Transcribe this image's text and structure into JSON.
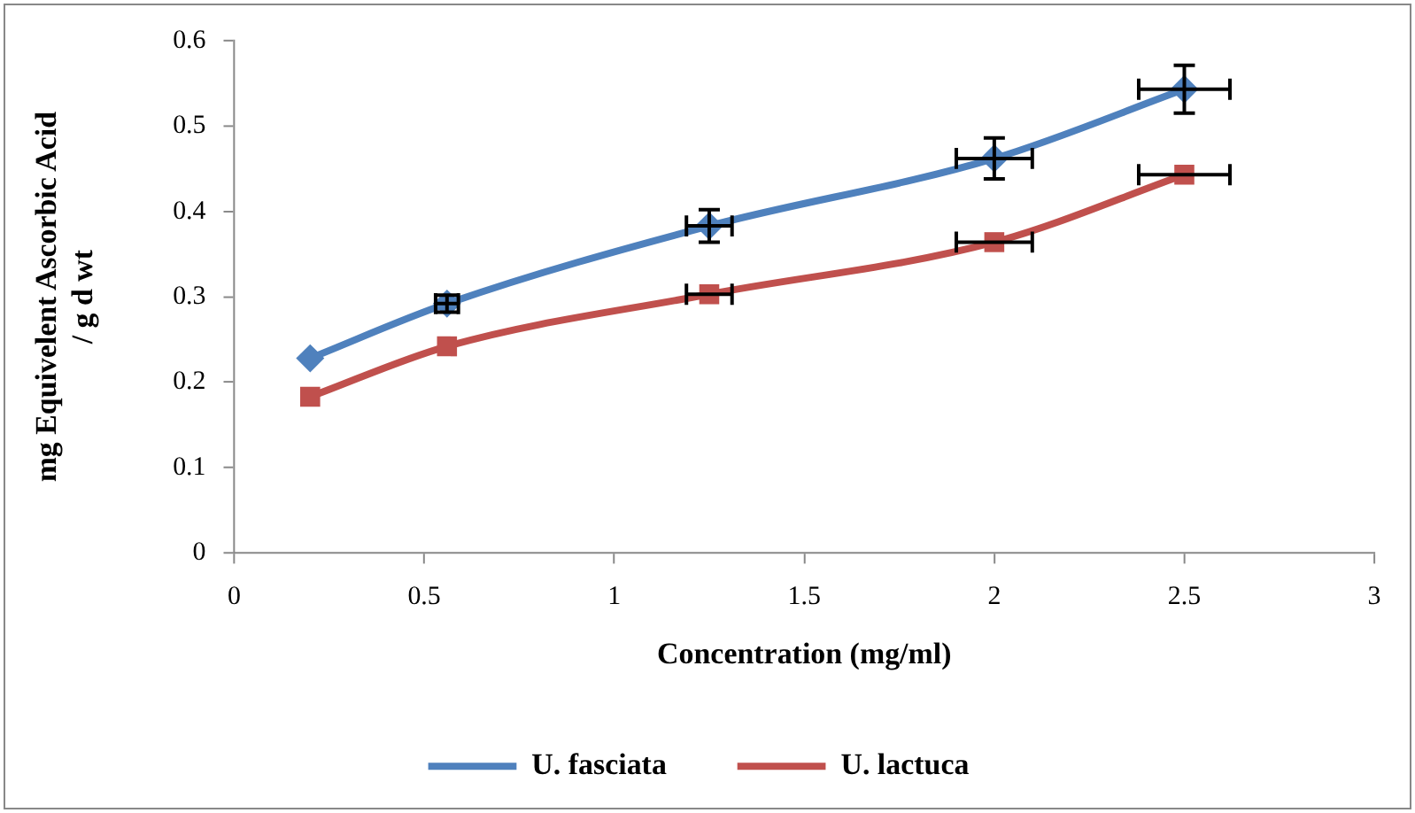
{
  "chart_data": {
    "type": "line",
    "xlabel": "Concentration (mg/ml)",
    "ylabel": "mg Equivelent Ascorbic Acid / g d wt",
    "xlim": [
      0,
      3
    ],
    "xticks": [
      0,
      0.5,
      1,
      1.5,
      2,
      2.5,
      3
    ],
    "ylim": [
      0,
      0.6
    ],
    "yticks": [
      0,
      0.1,
      0.2,
      0.3,
      0.4,
      0.5,
      0.6
    ],
    "grid": false,
    "legend": "bottom",
    "series": [
      {
        "name": "U. fasciata",
        "color": "#4f81bd",
        "marker": "diamond",
        "x": [
          0.2,
          0.56,
          1.25,
          2,
          2.5
        ],
        "values": [
          0.228,
          0.292,
          0.383,
          0.462,
          0.543
        ],
        "errors": [
          null,
          0.01,
          0.019,
          0.024,
          0.028
        ],
        "xerrors": [
          null,
          0.03,
          0.06,
          0.1,
          0.12
        ]
      },
      {
        "name": "U. lactuca",
        "color": "#c0504d",
        "marker": "square",
        "x": [
          0.2,
          0.56,
          1.25,
          2,
          2.5
        ],
        "values": [
          0.183,
          0.242,
          0.303,
          0.364,
          0.443
        ],
        "errors": [
          null,
          null,
          null,
          null,
          null
        ],
        "xerrors": [
          null,
          null,
          0.06,
          0.1,
          0.12
        ]
      }
    ]
  }
}
